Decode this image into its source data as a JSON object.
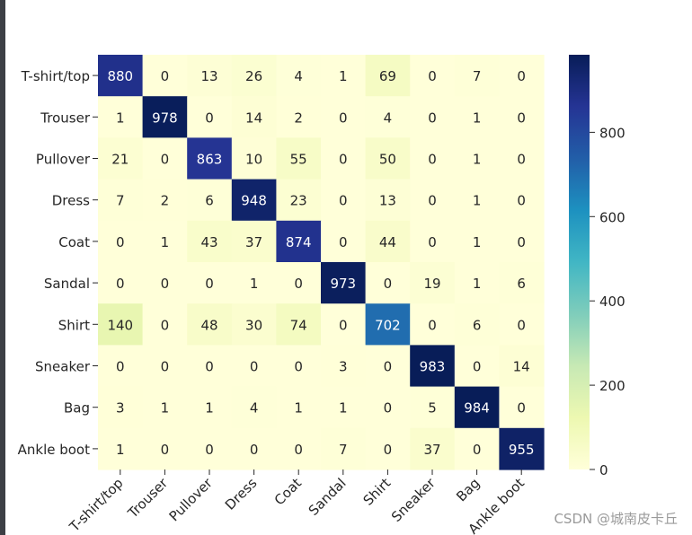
{
  "chart_data": {
    "type": "heatmap",
    "title": "",
    "xlabel": "",
    "ylabel": "",
    "row_labels": [
      "T-shirt/top",
      "Trouser",
      "Pullover",
      "Dress",
      "Coat",
      "Sandal",
      "Shirt",
      "Sneaker",
      "Bag",
      "Ankle boot"
    ],
    "col_labels": [
      "T-shirt/top",
      "Trouser",
      "Pullover",
      "Dress",
      "Coat",
      "Sandal",
      "Shirt",
      "Sneaker",
      "Bag",
      "Ankle boot"
    ],
    "values": [
      [
        880,
        0,
        13,
        26,
        4,
        1,
        69,
        0,
        7,
        0
      ],
      [
        1,
        978,
        0,
        14,
        2,
        0,
        4,
        0,
        1,
        0
      ],
      [
        21,
        0,
        863,
        10,
        55,
        0,
        50,
        0,
        1,
        0
      ],
      [
        7,
        2,
        6,
        948,
        23,
        0,
        13,
        0,
        1,
        0
      ],
      [
        0,
        1,
        43,
        37,
        874,
        0,
        44,
        0,
        1,
        0
      ],
      [
        0,
        0,
        0,
        1,
        0,
        973,
        0,
        19,
        1,
        6
      ],
      [
        140,
        0,
        48,
        30,
        74,
        0,
        702,
        0,
        6,
        0
      ],
      [
        0,
        0,
        0,
        0,
        0,
        3,
        0,
        983,
        0,
        14
      ],
      [
        3,
        1,
        1,
        4,
        1,
        1,
        0,
        5,
        984,
        0
      ],
      [
        1,
        0,
        0,
        0,
        0,
        7,
        0,
        37,
        0,
        955
      ]
    ],
    "colormap": "YlGnBu",
    "colorbar": {
      "min": 0,
      "max": 984,
      "ticks": [
        0,
        200,
        400,
        600,
        800
      ]
    }
  },
  "watermark": "CSDN @城南皮卡丘"
}
